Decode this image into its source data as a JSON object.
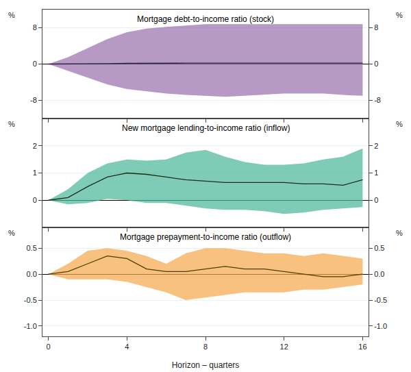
{
  "chart_data": [
    {
      "type": "line",
      "title": "Mortgage debt-to-income ratio (stock)",
      "x": [
        0,
        1,
        2,
        3,
        4,
        5,
        6,
        7,
        8,
        9,
        10,
        11,
        12,
        13,
        14,
        15,
        16
      ],
      "series": [
        {
          "type": "band",
          "color": "#9B72B0",
          "upper": [
            0.0,
            1.5,
            3.5,
            5.5,
            7.0,
            7.8,
            8.2,
            8.5,
            8.8,
            8.8,
            8.8,
            8.8,
            8.8,
            8.8,
            8.8,
            8.8,
            8.8
          ],
          "lower": [
            0.0,
            -1.5,
            -3.0,
            -4.5,
            -5.5,
            -6.0,
            -6.5,
            -6.8,
            -7.0,
            -7.2,
            -7.0,
            -6.8,
            -6.5,
            -6.5,
            -6.5,
            -6.8,
            -7.0
          ]
        },
        {
          "type": "line",
          "color": "#2d2540",
          "values": [
            0.0,
            0.0,
            0.05,
            0.1,
            0.15,
            0.2,
            0.2,
            0.2,
            0.2,
            0.2,
            0.2,
            0.2,
            0.2,
            0.2,
            0.2,
            0.2,
            0.2
          ]
        }
      ],
      "xlim": [
        -0.3,
        16.3
      ],
      "xticks": [
        0,
        4,
        8,
        12,
        16
      ],
      "ylim": [
        -12,
        12
      ],
      "yticks": [
        -8,
        0,
        8
      ],
      "y2lim": [
        -12,
        12
      ],
      "y2ticks": [
        -8,
        0,
        8
      ],
      "ylabel": "%",
      "y2label": "%",
      "grid": "y",
      "tick_labels": "y"
    },
    {
      "type": "line",
      "title": "New mortgage lending-to-income ratio (inflow)",
      "x": [
        0,
        1,
        2,
        3,
        4,
        5,
        6,
        7,
        8,
        9,
        10,
        11,
        12,
        13,
        14,
        15,
        16
      ],
      "series": [
        {
          "type": "band",
          "color": "#4DB89A",
          "upper": [
            0.0,
            0.4,
            1.0,
            1.35,
            1.5,
            1.45,
            1.5,
            1.75,
            1.85,
            1.6,
            1.4,
            1.3,
            1.3,
            1.35,
            1.5,
            1.6,
            1.9
          ],
          "lower": [
            0.0,
            -0.15,
            -0.1,
            0.05,
            0.0,
            -0.1,
            -0.1,
            -0.2,
            -0.3,
            -0.35,
            -0.35,
            -0.4,
            -0.5,
            -0.45,
            -0.35,
            -0.3,
            -0.25
          ]
        },
        {
          "type": "line",
          "color": "#1a2e1a",
          "values": [
            0.0,
            0.1,
            0.5,
            0.85,
            1.0,
            0.95,
            0.85,
            0.75,
            0.7,
            0.65,
            0.65,
            0.65,
            0.65,
            0.6,
            0.6,
            0.55,
            0.75
          ]
        }
      ],
      "xlim": [
        -0.3,
        16.3
      ],
      "xticks": [
        0,
        4,
        8,
        12,
        16
      ],
      "ylim": [
        -1.0,
        3.0
      ],
      "yticks": [
        0,
        1,
        2
      ],
      "y2lim": [
        -1.0,
        3.0
      ],
      "y2ticks": [
        0,
        1,
        2
      ],
      "ylabel": "%",
      "y2label": "%",
      "grid": "y",
      "tick_labels": "y"
    },
    {
      "type": "line",
      "title": "Mortgage prepayment-to-income ratio (outflow)",
      "x": [
        0,
        1,
        2,
        3,
        4,
        5,
        6,
        7,
        8,
        9,
        10,
        11,
        12,
        13,
        14,
        15,
        16
      ],
      "series": [
        {
          "type": "band",
          "color": "#F5A94E",
          "upper": [
            0.0,
            0.2,
            0.45,
            0.5,
            0.45,
            0.35,
            0.2,
            0.4,
            0.5,
            0.5,
            0.45,
            0.4,
            0.4,
            0.35,
            0.4,
            0.35,
            0.3
          ],
          "lower": [
            0.0,
            -0.1,
            -0.1,
            -0.1,
            -0.15,
            -0.25,
            -0.35,
            -0.5,
            -0.45,
            -0.4,
            -0.35,
            -0.35,
            -0.35,
            -0.3,
            -0.3,
            -0.25,
            -0.2
          ]
        },
        {
          "type": "line",
          "color": "#4a4000",
          "values": [
            0.0,
            0.05,
            0.2,
            0.35,
            0.3,
            0.1,
            0.05,
            0.05,
            0.1,
            0.15,
            0.1,
            0.1,
            0.05,
            0.0,
            -0.05,
            -0.05,
            0.0
          ]
        }
      ],
      "xlim": [
        -0.3,
        16.3
      ],
      "xticks": [
        0,
        4,
        8,
        12,
        16
      ],
      "ylim": [
        -1.2,
        0.9
      ],
      "yticks": [
        {
          "value": -1.0,
          "label": "-1.0"
        },
        -0.5,
        {
          "value": 0.0,
          "label": "0.0"
        },
        0.5
      ],
      "y2lim": [
        -1.2,
        0.9
      ],
      "y2ticks": [
        {
          "value": -1.0,
          "label": "-1.0"
        },
        -0.5,
        {
          "value": 0.0,
          "label": "0.0"
        },
        0.5
      ],
      "ylabel": "%",
      "y2label": "%",
      "xlabel": "Horizon – quarters",
      "grid": "y",
      "tick_labels": true
    }
  ]
}
